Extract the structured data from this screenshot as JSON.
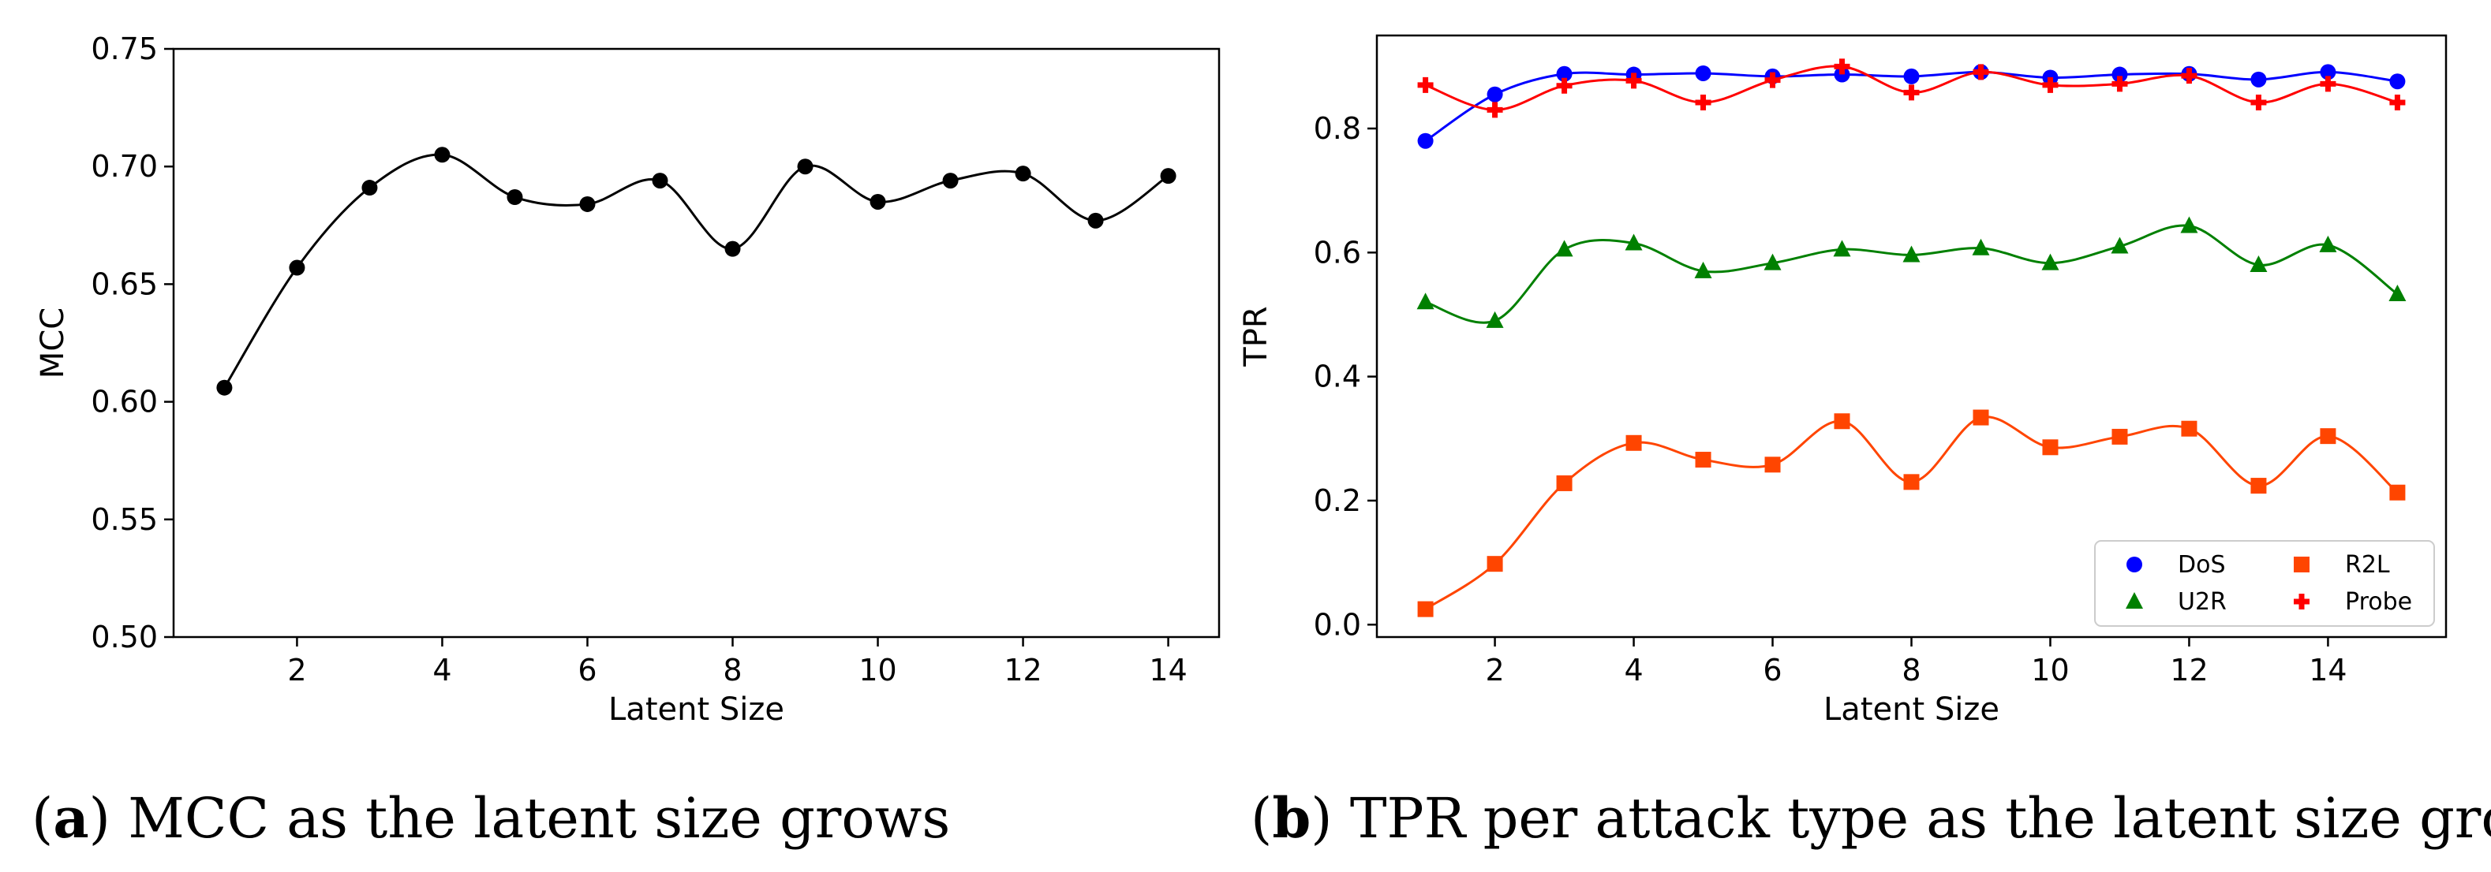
{
  "colors": {
    "mcc": "#000000",
    "DoS": "#0000ff",
    "U2R": "#008000",
    "R2L": "#ff4500",
    "Probe": "#ff0000"
  },
  "chart_data": [
    {
      "type": "line",
      "panel": "a",
      "xlabel": "Latent Size",
      "ylabel": "MCC",
      "xlim": [
        0.3,
        14.7
      ],
      "ylim": [
        0.5,
        0.75
      ],
      "xticks": [
        2,
        4,
        6,
        8,
        10,
        12,
        14
      ],
      "yticks": [
        0.5,
        0.55,
        0.6,
        0.65,
        0.7,
        0.75
      ],
      "ytick_labels": [
        "0.50",
        "0.55",
        "0.60",
        "0.65",
        "0.70",
        "0.75"
      ],
      "grid": false,
      "x": [
        1,
        2,
        3,
        4,
        5,
        6,
        7,
        8,
        9,
        10,
        11,
        12,
        13,
        14
      ],
      "series": [
        {
          "marker": "circle",
          "values": [
            0.606,
            0.657,
            0.691,
            0.705,
            0.687,
            0.684,
            0.694,
            0.665,
            0.7,
            0.685,
            0.694,
            0.697,
            0.677,
            0.696
          ]
        }
      ],
      "caption_label": "a",
      "caption_text": ") MCC as the latent size grows"
    },
    {
      "type": "line",
      "panel": "b",
      "xlabel": "Latent Size",
      "ylabel": "TPR",
      "xlim": [
        0.3,
        15.7
      ],
      "ylim": [
        -0.02,
        0.95
      ],
      "xticks": [
        2,
        4,
        6,
        8,
        10,
        12,
        14
      ],
      "yticks": [
        0.0,
        0.2,
        0.4,
        0.6,
        0.8
      ],
      "ytick_labels": [
        "0.0",
        "0.2",
        "0.4",
        "0.6",
        "0.8"
      ],
      "grid": false,
      "legend_position": "bottom-right",
      "x": [
        1,
        2,
        3,
        4,
        5,
        6,
        7,
        8,
        9,
        10,
        11,
        12,
        13,
        14,
        15
      ],
      "series": [
        {
          "name": "DoS",
          "marker": "circle",
          "values": [
            0.78,
            0.855,
            0.888,
            0.887,
            0.889,
            0.884,
            0.887,
            0.884,
            0.891,
            0.882,
            0.887,
            0.888,
            0.879,
            0.891,
            0.876
          ]
        },
        {
          "name": "U2R",
          "marker": "triangle",
          "values": [
            0.52,
            0.49,
            0.605,
            0.615,
            0.57,
            0.583,
            0.605,
            0.596,
            0.607,
            0.583,
            0.61,
            0.643,
            0.58,
            0.612,
            0.533
          ]
        },
        {
          "name": "R2L",
          "marker": "square",
          "values": [
            0.025,
            0.098,
            0.228,
            0.293,
            0.266,
            0.258,
            0.328,
            0.23,
            0.334,
            0.286,
            0.303,
            0.316,
            0.224,
            0.304,
            0.213
          ]
        },
        {
          "name": "Probe",
          "marker": "plus",
          "values": [
            0.87,
            0.83,
            0.869,
            0.877,
            0.842,
            0.878,
            0.9,
            0.858,
            0.891,
            0.87,
            0.872,
            0.885,
            0.842,
            0.872,
            0.842
          ]
        }
      ],
      "caption_label": "b",
      "caption_text": ") TPR per attack type as the latent size grows"
    }
  ]
}
